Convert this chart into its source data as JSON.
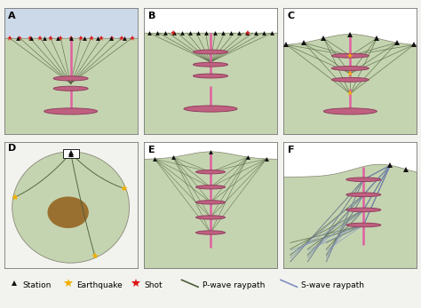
{
  "bg_color": "#f2f2ee",
  "panel_bg_top_A": "#ccd9e8",
  "ground_color": "#c5d4b0",
  "deep_color": "#b0c0a0",
  "reflector_color": "#c06080",
  "reflector_edge": "#904060",
  "borehole_color": "#e060a0",
  "ray_color": "#4a5c38",
  "ray_color_s": "#8090c0",
  "station_color": "#111111",
  "earthquake_color": "#f0b000",
  "shot_color": "#dd1515",
  "anomaly_color": "#9a7030",
  "panels": [
    "A",
    "B",
    "C",
    "D",
    "E",
    "F"
  ],
  "legend_station": "Station",
  "legend_earthquake": "Earthquake",
  "legend_shot": "Shot",
  "legend_pwave": "P-wave raypath",
  "legend_swave": "S-wave raypath"
}
